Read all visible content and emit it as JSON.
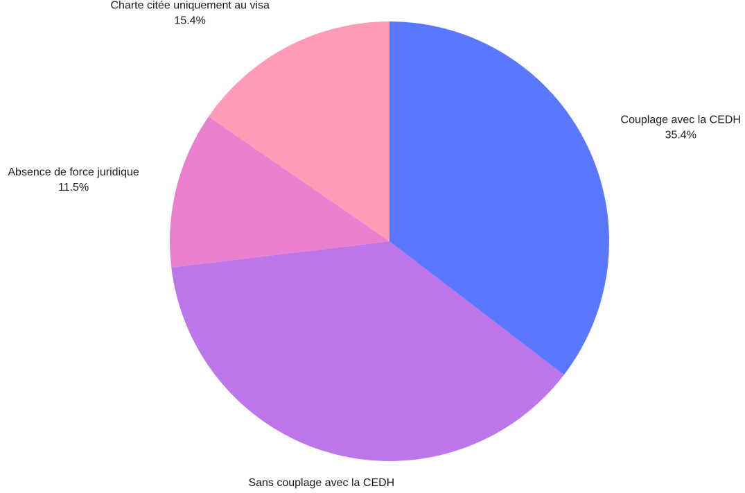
{
  "chart_data": {
    "type": "pie",
    "title": "",
    "slices": [
      {
        "label": "Couplage avec la CEDH",
        "value": 35.4,
        "value_label": "35.4%",
        "color": "#5A78FF"
      },
      {
        "label": "Sans couplage avec la CEDH",
        "value": 37.7,
        "value_label": "37.7%",
        "color": "#BD76EA"
      },
      {
        "label": "Absence de force juridique",
        "value": 11.5,
        "value_label": "11.5%",
        "color": "#EA80CE"
      },
      {
        "label": "Charte citée uniquement au visa",
        "value": 15.4,
        "value_label": "15.4%",
        "color": "#FF9BB6"
      }
    ],
    "start_angle": "top",
    "direction": "clockwise",
    "legend": "none"
  }
}
